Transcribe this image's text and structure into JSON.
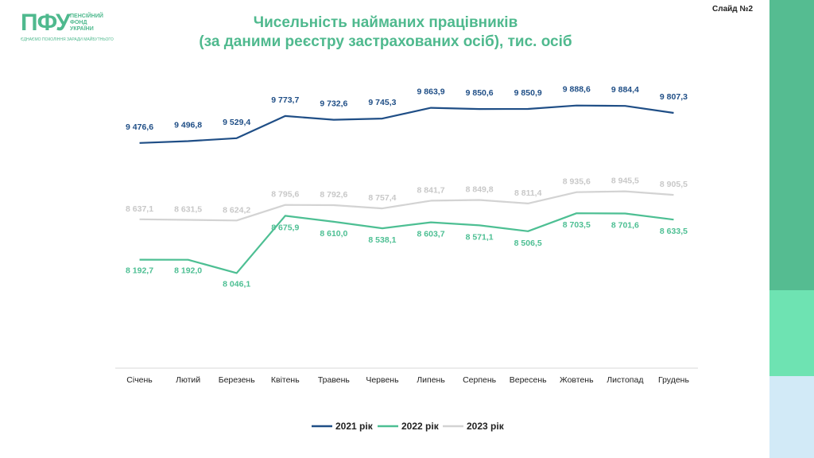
{
  "logo": {
    "mark": "ПФУ",
    "org_line1": "ПЕНСІЙНИЙ",
    "org_line2": "ФОНД",
    "org_line3": "УКРАЇНИ",
    "slogan": "ЄДНАЄМО ПОКОЛІННЯ ЗАРАДИ МАЙБУТНЬОГО"
  },
  "slide_label": "Слайд №2",
  "colors": {
    "accent": "#4fb98e",
    "s2021": "#1f4e86",
    "s2022": "#4dbf93",
    "s2023": "#d3d3d3"
  },
  "chart_data": {
    "type": "line",
    "title_line1": "Чисельність найманих працівників",
    "title_line2": "(за даними реєстру застрахованих осіб), тис. осіб",
    "categories": [
      "Січень",
      "Лютий",
      "Березень",
      "Квітень",
      "Травень",
      "Червень",
      "Липень",
      "Серпень",
      "Вересень",
      "Жовтень",
      "Листопад",
      "Грудень"
    ],
    "ylim": [
      7000,
      10000
    ],
    "grid": false,
    "legend": "bottom",
    "series": [
      {
        "name": "2021 рік",
        "values": [
          9476.6,
          9496.8,
          9529.4,
          9773.7,
          9732.6,
          9745.3,
          9863.9,
          9850.6,
          9850.9,
          9888.6,
          9884.4,
          9807.3
        ],
        "labels": [
          "9 476,6",
          "9 496,8",
          "9 529,4",
          "9 773,7",
          "9 732,6",
          "9 745,3",
          "9 863,9",
          "9 850,6",
          "9 850,9",
          "9 888,6",
          "9 884,4",
          "9 807,3"
        ]
      },
      {
        "name": "2022 рік",
        "values": [
          8192.7,
          8192.0,
          8046.1,
          8675.9,
          8610.0,
          8538.1,
          8603.7,
          8571.1,
          8506.5,
          8703.5,
          8701.6,
          8633.5
        ],
        "labels": [
          "8 192,7",
          "8 192,0",
          "8 046,1",
          "8 675,9",
          "8 610,0",
          "8 538,1",
          "8 603,7",
          "8 571,1",
          "8 506,5",
          "8 703,5",
          "8 701,6",
          "8 633,5"
        ]
      },
      {
        "name": "2023 рік",
        "values": [
          8637.1,
          8631.5,
          8624.2,
          8795.6,
          8792.6,
          8757.4,
          8841.7,
          8849.8,
          8811.4,
          8935.6,
          8945.5,
          8905.5
        ],
        "labels": [
          "8 637,1",
          "8 631,5",
          "8 624,2",
          "8 795,6",
          "8 792,6",
          "8 757,4",
          "8 841,7",
          "8 849,8",
          "8 811,4",
          "8 935,6",
          "8 945,5",
          "8 905,5"
        ]
      }
    ]
  }
}
